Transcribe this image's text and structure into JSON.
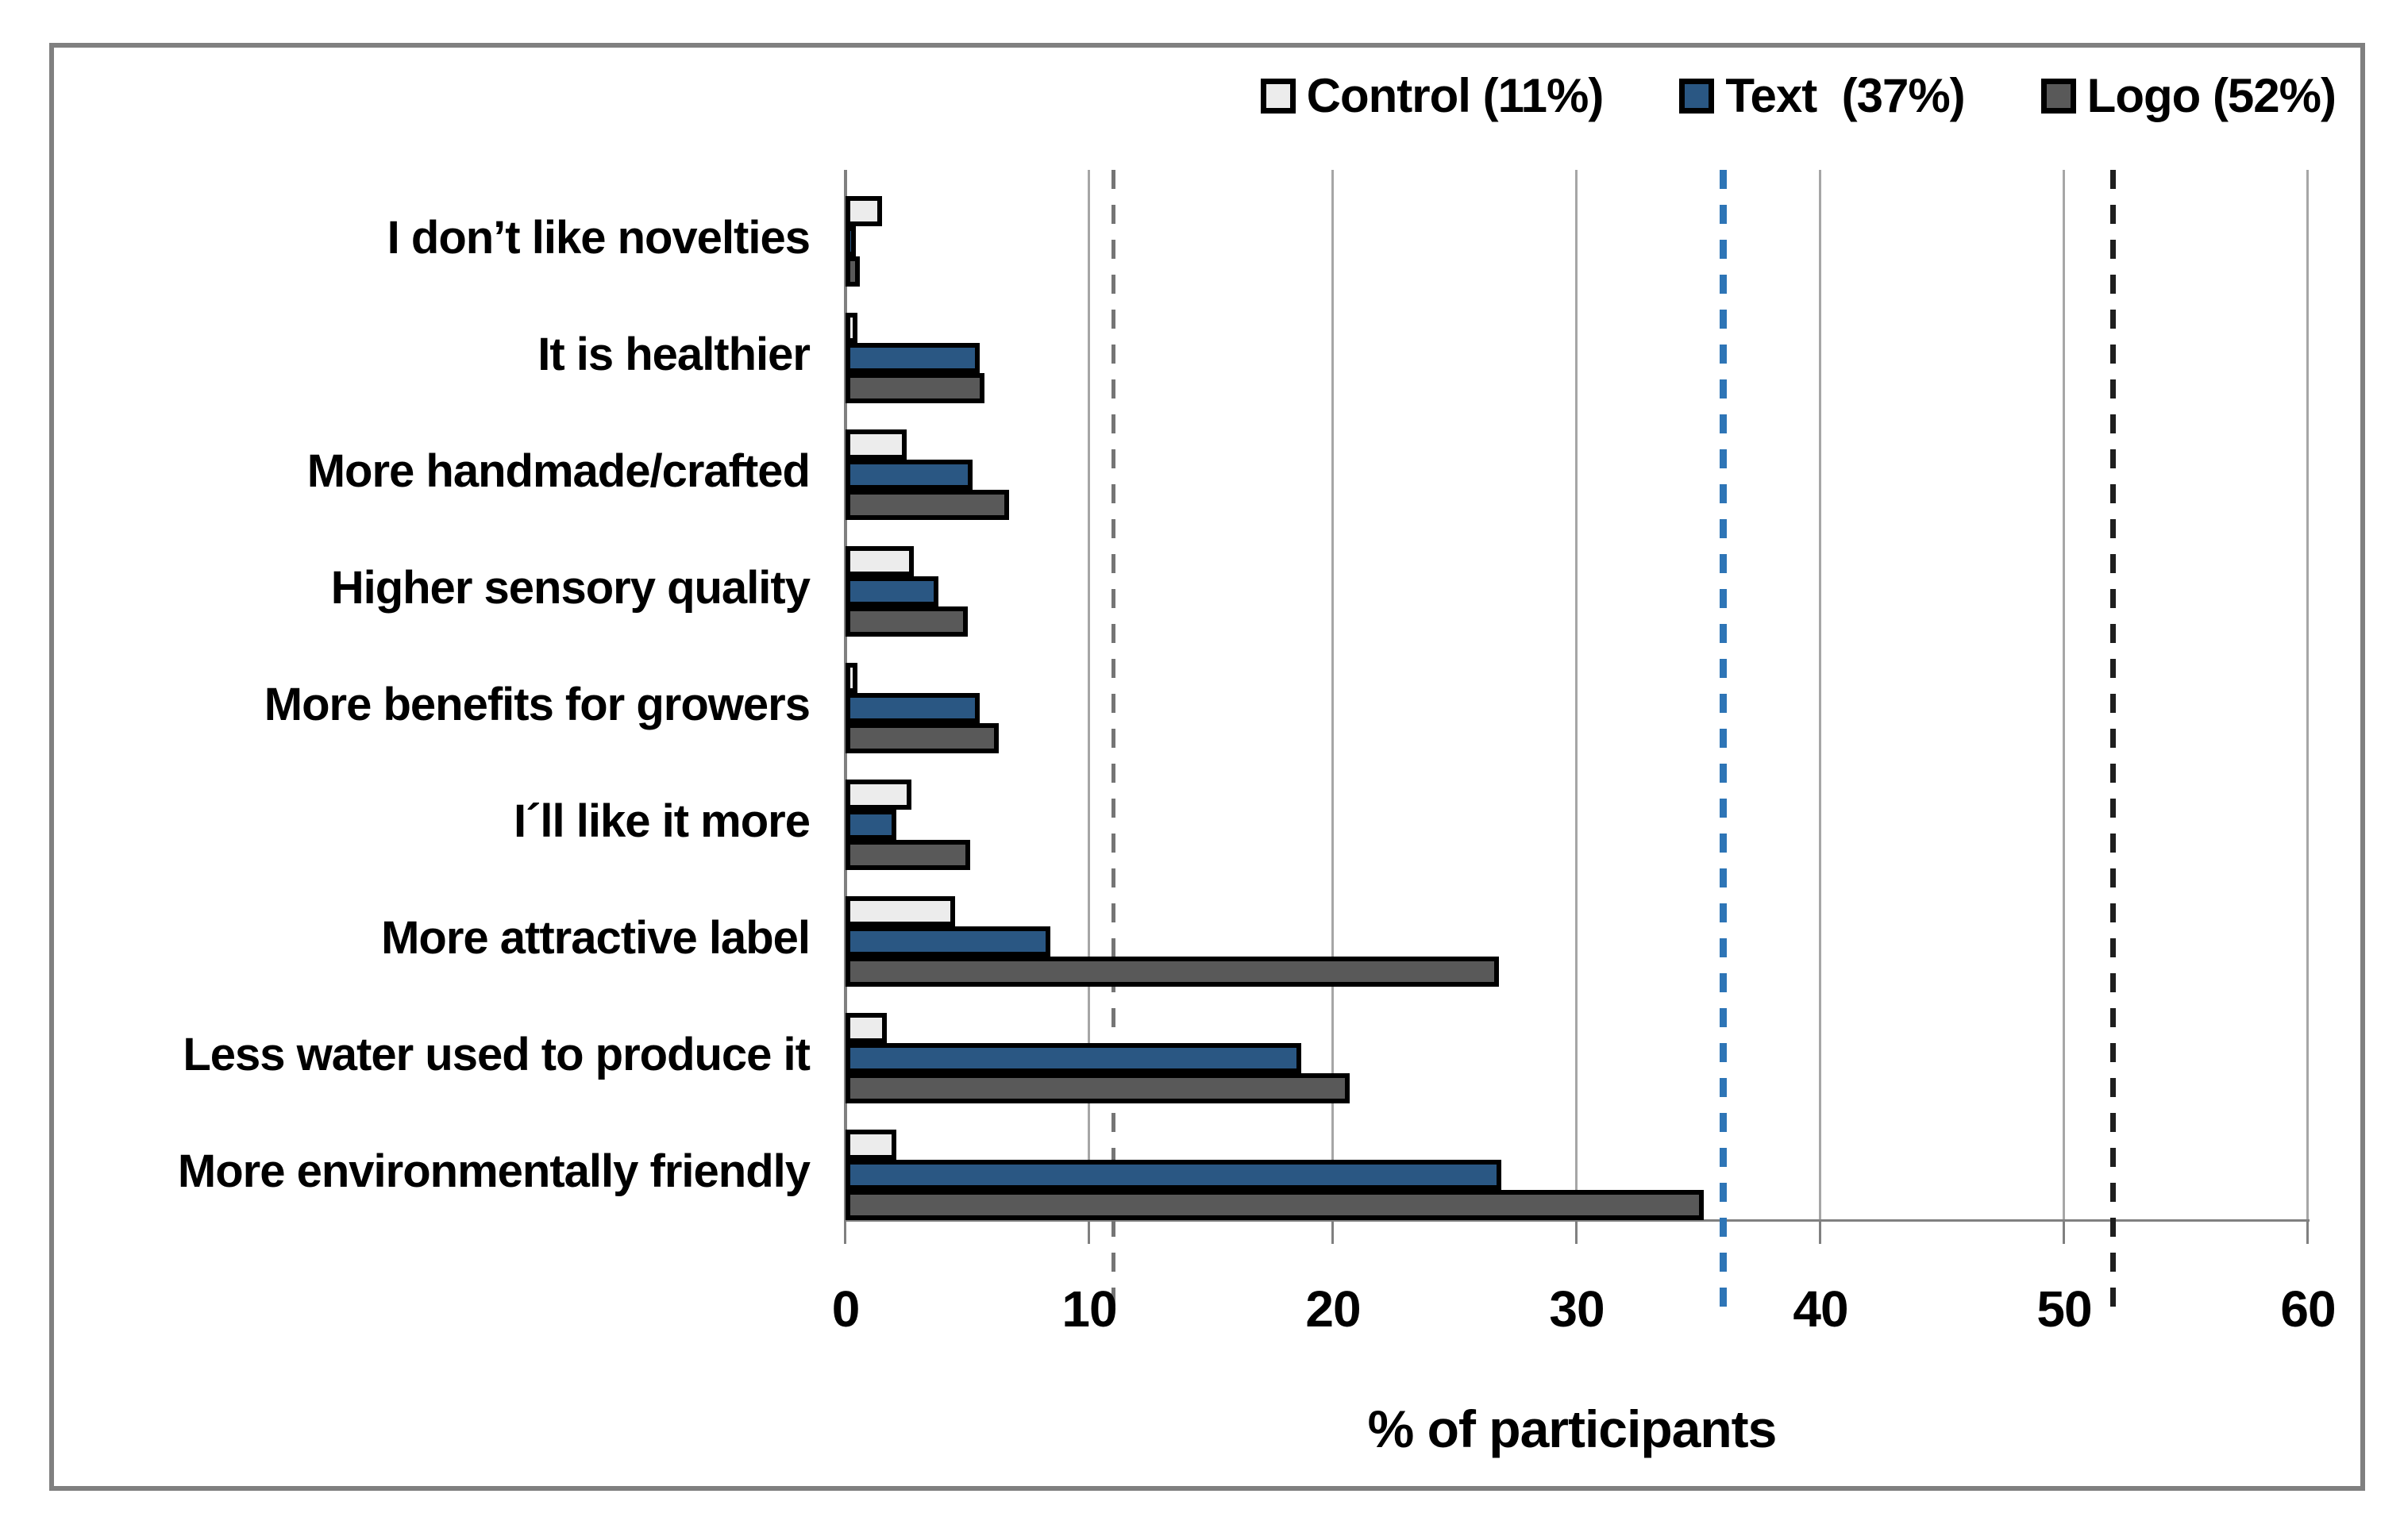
{
  "figure": {
    "background_color": "#FFFFFF",
    "border_color": "#808080"
  },
  "legend": {
    "position": "top-right",
    "items": [
      {
        "label": "Control (11%)",
        "color": "#ECECEC",
        "swatch_border": "#000000"
      },
      {
        "label": "Text  (37%)",
        "color": "#2A5783",
        "swatch_border": "#000000"
      },
      {
        "label": "Logo (52%)",
        "color": "#595959",
        "swatch_border": "#000000"
      }
    ]
  },
  "chart_data": {
    "type": "bar",
    "orientation": "horizontal",
    "title": "",
    "xlabel": "% of participants",
    "ylabel": "",
    "xlim": [
      0,
      60
    ],
    "xticks": [
      0,
      10,
      20,
      30,
      40,
      50,
      60
    ],
    "grid": "vertical-solid-light-gray",
    "categories": [
      "I don’t like novelties",
      "It is healthier",
      "More handmade/crafted",
      "Higher sensory quality",
      "More benefits for growers",
      "I´ll like it more",
      "More attractive label",
      "Less water used to produce it",
      "More environmentally friendly"
    ],
    "series": [
      {
        "name": "Control (11%)",
        "color": "#ECECEC",
        "bar_border": "#000000",
        "values": [
          1.5,
          0.5,
          2.5,
          2.8,
          0.5,
          2.7,
          4.5,
          1.7,
          2.1
        ]
      },
      {
        "name": "Text (37%)",
        "color": "#2A5783",
        "bar_border": "#000000",
        "values": [
          0.3,
          5.5,
          5.2,
          3.8,
          5.5,
          2.1,
          8.4,
          18.7,
          26.9
        ]
      },
      {
        "name": "Logo (52%)",
        "color": "#595959",
        "bar_border": "#000000",
        "values": [
          0.6,
          5.7,
          6.7,
          5.0,
          6.3,
          5.1,
          26.8,
          20.7,
          35.2
        ]
      }
    ],
    "reference_lines": [
      {
        "value": 11,
        "style": "dashed",
        "color": "#757575",
        "width": 5
      },
      {
        "value": 36,
        "style": "dashed",
        "color": "#2E75B6",
        "width": 9
      },
      {
        "value": 52,
        "style": "dashed",
        "color": "#1F1F1F",
        "width": 7
      }
    ],
    "axis_color": "#808080",
    "gridline_color": "#A6A6A6"
  }
}
